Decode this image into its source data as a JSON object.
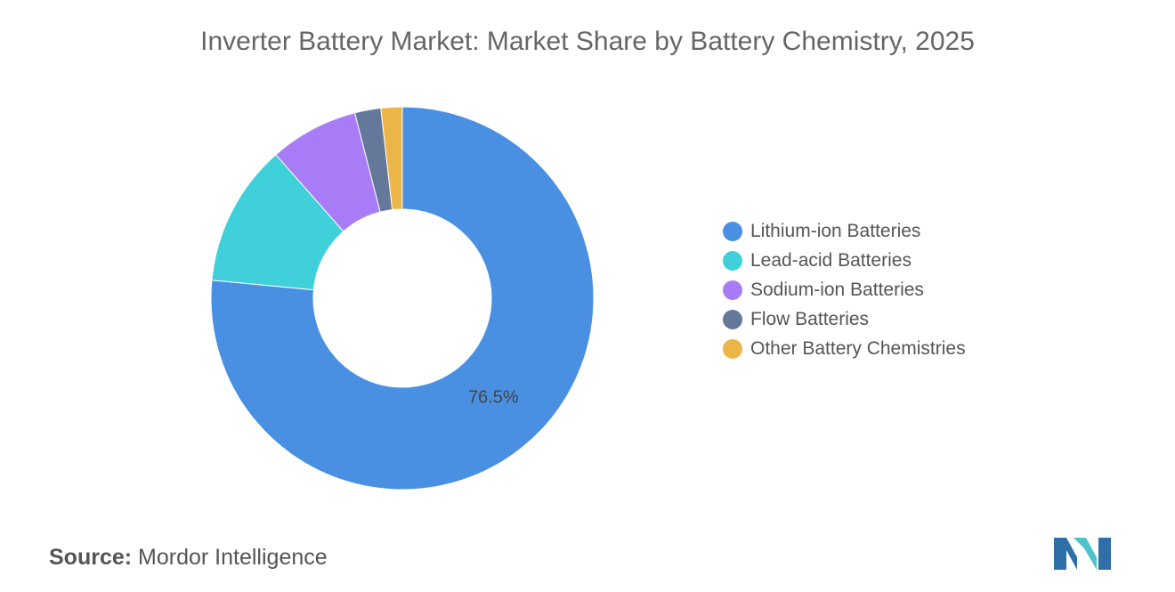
{
  "chart_data": {
    "type": "pie",
    "donut": true,
    "title": "Inverter Battery Market: Market Share by Battery Chemistry, 2025",
    "categories": [
      "Lithium-ion Batteries",
      "Lead-acid Batteries",
      "Sodium-ion Batteries",
      "Flow Batteries",
      "Other Battery Chemistries"
    ],
    "values": [
      76.5,
      12.0,
      7.5,
      2.2,
      1.8
    ],
    "colors": [
      "#4a90e2",
      "#3fd0d9",
      "#a97cf7",
      "#64789a",
      "#ecb547"
    ],
    "data_labels": [
      {
        "category": "Lithium-ion Batteries",
        "text": "76.5%"
      }
    ],
    "legend_position": "right",
    "start_angle_deg": 0,
    "direction": "clockwise"
  },
  "source": {
    "prefix": "Source:",
    "name": "Mordor Intelligence"
  },
  "logo": {
    "icon": "mordor-intelligence-logo",
    "colors": [
      "#2e6fa8",
      "#4ec3c9"
    ]
  }
}
